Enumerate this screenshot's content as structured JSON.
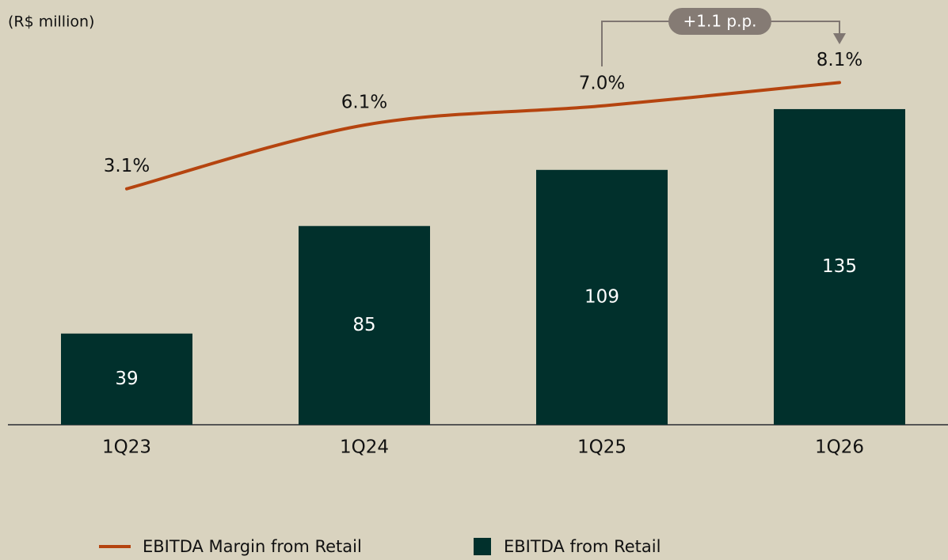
{
  "chart_data": {
    "type": "bar",
    "subtitle": "(R$ million)",
    "categories": [
      "1Q23",
      "1Q24",
      "1Q25",
      "1Q26"
    ],
    "series": [
      {
        "name": "EBITDA from Retail",
        "type": "bar",
        "color": "#01302c",
        "values": [
          39,
          85,
          109,
          135
        ]
      },
      {
        "name": "EBITDA Margin from Retail",
        "type": "line",
        "axis": "y2",
        "color": "#b5440f",
        "values": [
          3.1,
          6.1,
          7.0,
          8.1
        ],
        "value_labels": [
          "3.1%",
          "6.1%",
          "7.0%",
          "8.1%"
        ]
      }
    ],
    "ylim": [
      0,
      150
    ],
    "y2lim": [
      -8,
      8.5
    ],
    "annotation": "+1.1 p.p.",
    "grid": false
  }
}
